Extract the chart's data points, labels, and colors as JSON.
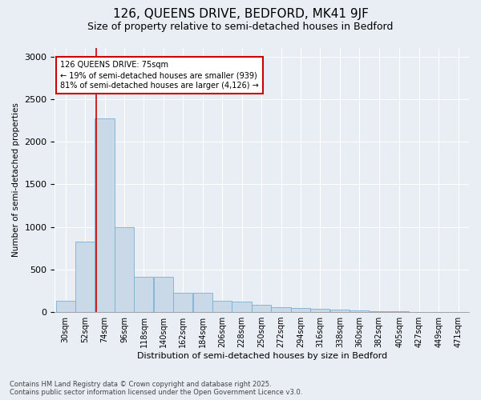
{
  "title1": "126, QUEENS DRIVE, BEDFORD, MK41 9JF",
  "title2": "Size of property relative to semi-detached houses in Bedford",
  "xlabel": "Distribution of semi-detached houses by size in Bedford",
  "ylabel": "Number of semi-detached properties",
  "bin_labels": [
    "30sqm",
    "52sqm",
    "74sqm",
    "96sqm",
    "118sqm",
    "140sqm",
    "162sqm",
    "184sqm",
    "206sqm",
    "228sqm",
    "250sqm",
    "272sqm",
    "294sqm",
    "316sqm",
    "338sqm",
    "360sqm",
    "382sqm",
    "405sqm",
    "427sqm",
    "449sqm",
    "471sqm"
  ],
  "bin_edges": [
    30,
    52,
    74,
    96,
    118,
    140,
    162,
    184,
    206,
    228,
    250,
    272,
    294,
    316,
    338,
    360,
    382,
    405,
    427,
    449,
    471
  ],
  "bar_values": [
    130,
    830,
    2270,
    1000,
    410,
    410,
    230,
    230,
    130,
    125,
    90,
    55,
    45,
    35,
    25,
    18,
    12,
    8,
    5,
    3,
    1
  ],
  "bar_color": "#c9d9e8",
  "bar_edge_color": "#7bafd4",
  "property_size": 75,
  "red_line_color": "#cc0000",
  "annotation_text": "126 QUEENS DRIVE: 75sqm\n← 19% of semi-detached houses are smaller (939)\n81% of semi-detached houses are larger (4,126) →",
  "annotation_box_color": "#ffffff",
  "annotation_box_edge": "#cc0000",
  "ylim": [
    0,
    3100
  ],
  "yticks": [
    0,
    500,
    1000,
    1500,
    2000,
    2500,
    3000
  ],
  "background_color": "#e8eef4",
  "footer_text": "Contains HM Land Registry data © Crown copyright and database right 2025.\nContains public sector information licensed under the Open Government Licence v3.0.",
  "title1_fontsize": 11,
  "title2_fontsize": 9,
  "bin_width": 22
}
